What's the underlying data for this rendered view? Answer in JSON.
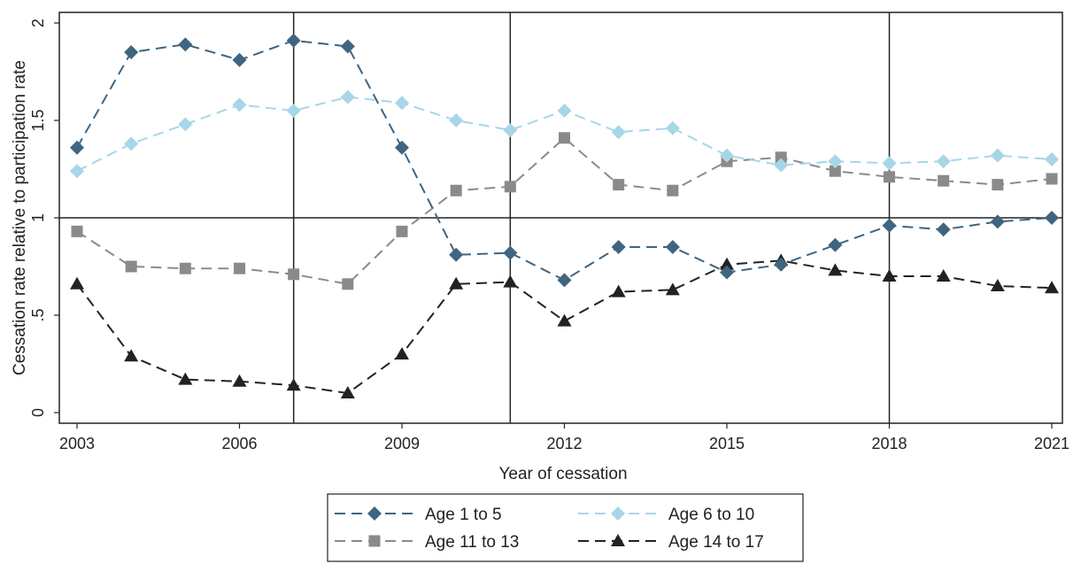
{
  "chart_data": {
    "type": "line",
    "title": "",
    "xlabel": "Year of cessation",
    "ylabel": "Cessation rate relative to participation rate",
    "x": [
      2003,
      2004,
      2005,
      2006,
      2007,
      2008,
      2009,
      2010,
      2011,
      2012,
      2013,
      2014,
      2015,
      2016,
      2017,
      2018,
      2019,
      2020,
      2021
    ],
    "xlim": [
      2003,
      2021
    ],
    "ylim": [
      0,
      2
    ],
    "xticks": [
      2003,
      2006,
      2009,
      2012,
      2015,
      2018,
      2021
    ],
    "xtick_labels": [
      "2003",
      "2006",
      "2009",
      "2012",
      "2015",
      "2018",
      "2021"
    ],
    "yticks": [
      0,
      0.5,
      1,
      1.5,
      2
    ],
    "ytick_labels": [
      "0",
      ".5",
      "1",
      "1.5",
      "2"
    ],
    "reference_lines": {
      "horizontal": [
        1
      ],
      "vertical": [
        2007,
        2011,
        2018
      ]
    },
    "grid": false,
    "legend_position": "bottom",
    "series": [
      {
        "name": "Age 1 to 5",
        "marker": "diamond",
        "color": "#3f6580",
        "values": [
          1.36,
          1.85,
          1.89,
          1.81,
          1.91,
          1.88,
          1.36,
          0.81,
          0.82,
          0.68,
          0.85,
          0.85,
          0.72,
          0.76,
          0.86,
          0.96,
          0.94,
          0.98,
          1.0
        ]
      },
      {
        "name": "Age 6 to 10",
        "marker": "diamond",
        "color": "#a7d6e8",
        "values": [
          1.24,
          1.38,
          1.48,
          1.58,
          1.55,
          1.62,
          1.59,
          1.5,
          1.45,
          1.55,
          1.44,
          1.46,
          1.32,
          1.27,
          1.29,
          1.28,
          1.29,
          1.32,
          1.3
        ]
      },
      {
        "name": "Age 11 to 13",
        "marker": "square",
        "color": "#8a8a8a",
        "values": [
          0.93,
          0.75,
          0.74,
          0.74,
          0.71,
          0.66,
          0.93,
          1.14,
          1.16,
          1.41,
          1.17,
          1.14,
          1.29,
          1.31,
          1.24,
          1.21,
          1.19,
          1.17,
          1.2
        ]
      },
      {
        "name": "Age 14 to 17",
        "marker": "triangle",
        "color": "#222222",
        "values": [
          0.66,
          0.29,
          0.17,
          0.16,
          0.14,
          0.1,
          0.3,
          0.66,
          0.67,
          0.47,
          0.62,
          0.63,
          0.76,
          0.78,
          0.73,
          0.7,
          0.7,
          0.65,
          0.64
        ]
      }
    ]
  }
}
